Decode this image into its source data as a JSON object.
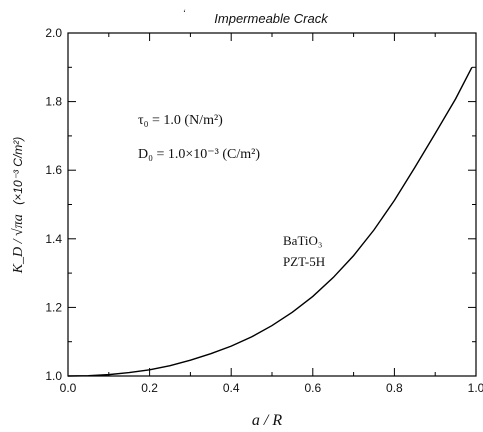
{
  "chart_data": {
    "type": "line",
    "title": "Impermeable Crack",
    "xlabel": "a / R",
    "ylabel_main": "K_D / √πa",
    "ylabel_unit": "(×10⁻³ C/m²)",
    "xlim": [
      0.0,
      1.0
    ],
    "ylim": [
      1.0,
      2.0
    ],
    "xticks": [
      "0.0",
      "0.2",
      "0.4",
      "0.6",
      "0.8",
      "1.0"
    ],
    "yticks": [
      "1.0",
      "1.2",
      "1.4",
      "1.6",
      "1.8",
      "2.0"
    ],
    "grid": false,
    "annotations": {
      "tau_label": "τ₀ = 1.0 (N/m²)",
      "d_label": "D₀ = 1.0×10⁻³ (C/m²)",
      "material_1": "BaTiO₃",
      "material_2": "PZT-5H"
    },
    "series": [
      {
        "x": [
          0.0,
          0.05,
          0.1,
          0.15,
          0.2,
          0.25,
          0.3,
          0.35,
          0.4,
          0.45,
          0.5,
          0.55,
          0.6,
          0.65,
          0.7,
          0.75,
          0.8,
          0.85,
          0.9,
          0.95,
          0.99
        ],
        "values": [
          1.0,
          1.001,
          1.004,
          1.01,
          1.018,
          1.03,
          1.046,
          1.065,
          1.087,
          1.114,
          1.147,
          1.186,
          1.232,
          1.287,
          1.351,
          1.426,
          1.512,
          1.608,
          1.707,
          1.808,
          1.9
        ]
      }
    ]
  }
}
